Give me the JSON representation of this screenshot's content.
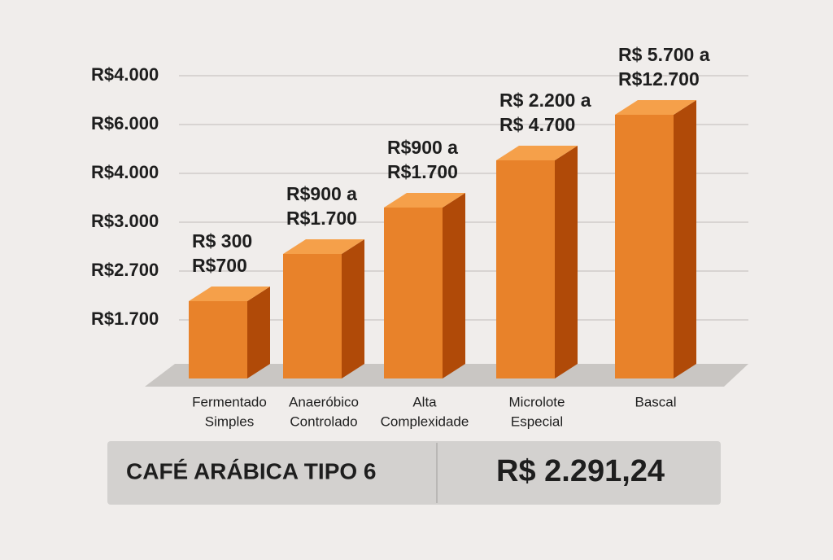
{
  "chart": {
    "y_axis_labels": [
      "R$4.000",
      "R$6.000",
      "R$4.000",
      "R$3.000",
      "R$2.700",
      "R$1.700"
    ],
    "categories": [
      [
        "Fermentado",
        "Simples"
      ],
      [
        "Anaeróbico",
        "Controlado"
      ],
      [
        "Alta",
        "Complexidade"
      ],
      [
        "Microlote",
        "Especial"
      ],
      [
        "Bascal"
      ]
    ],
    "value_labels": [
      [
        "R$ 300",
        "R$700"
      ],
      [
        "R$900 a",
        "R$1.700"
      ],
      [
        "R$900 a",
        "R$1.700"
      ],
      [
        "R$ 2.200 a",
        "R$ 4.700"
      ],
      [
        "R$ 5.700 a",
        "R$12.700"
      ]
    ]
  },
  "price_box": {
    "product": "CAFÉ ARÁBICA TIPO 6",
    "price": "R$ 2.291,24"
  }
}
